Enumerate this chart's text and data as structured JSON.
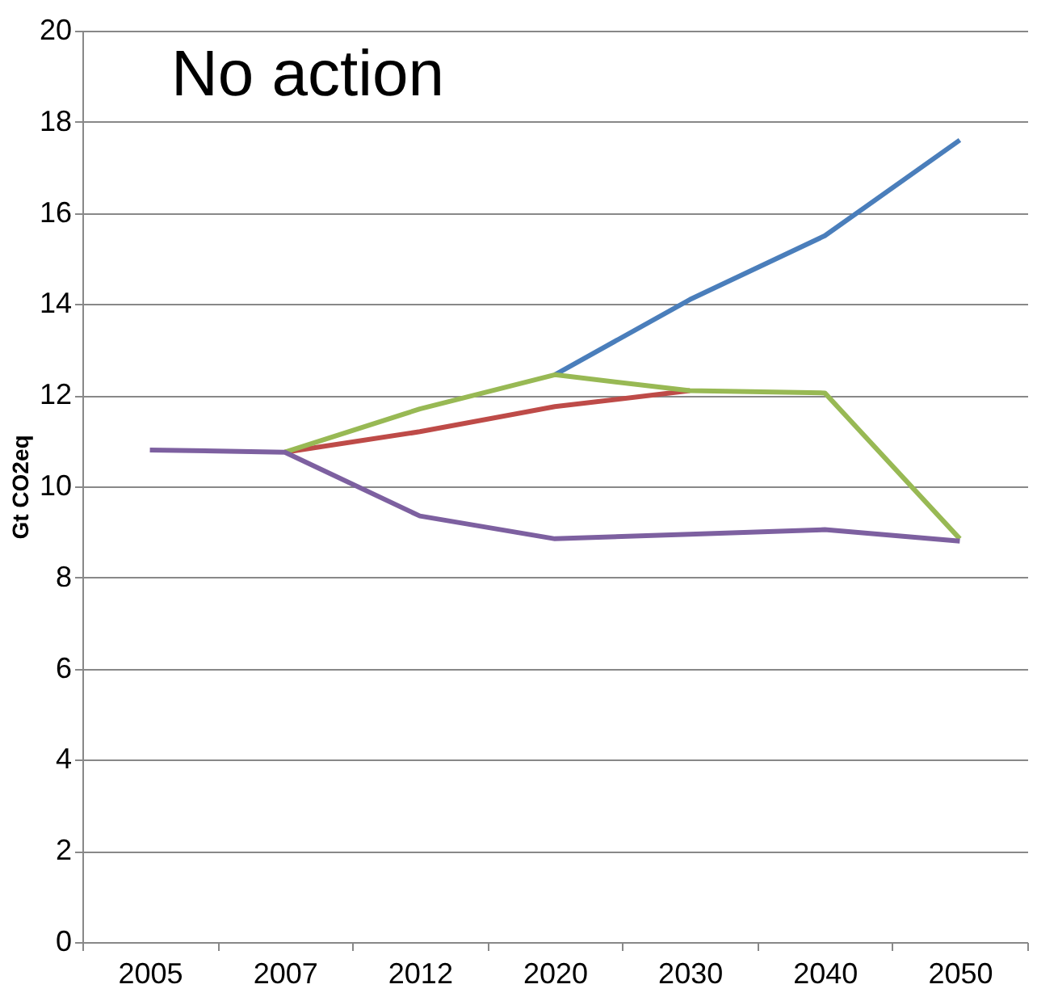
{
  "chart_data": {
    "type": "line",
    "annotations": [
      "No action"
    ],
    "ylabel": "Gt CO2eq",
    "categories": [
      "2005",
      "2007",
      "2012",
      "2020",
      "2030",
      "2040",
      "2050"
    ],
    "series": [
      {
        "color": "#4a7ebb",
        "values": [
          null,
          null,
          null,
          12.45,
          14.1,
          15.5,
          17.6
        ]
      },
      {
        "color": "#be4b48",
        "values": [
          null,
          10.75,
          11.2,
          11.75,
          12.1,
          null,
          null
        ]
      },
      {
        "color": "#98b954",
        "values": [
          null,
          10.75,
          11.7,
          12.45,
          12.1,
          12.05,
          8.85
        ]
      },
      {
        "color": "#7d60a0",
        "values": [
          10.8,
          10.75,
          9.35,
          8.85,
          8.95,
          9.05,
          8.8
        ]
      }
    ],
    "ylim": [
      0,
      20
    ],
    "yticks": [
      0,
      2,
      4,
      6,
      8,
      10,
      12,
      14,
      16,
      18,
      20
    ],
    "grid": "y",
    "legend": false,
    "marker": "none",
    "line_style": "solid"
  }
}
